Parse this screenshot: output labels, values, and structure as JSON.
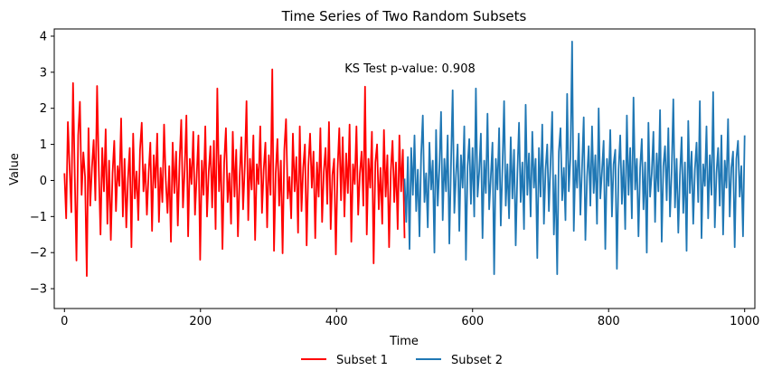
{
  "chart_data": {
    "type": "line",
    "title": "Time Series of Two Random Subsets",
    "xlabel": "Time",
    "ylabel": "Value",
    "xlim": [
      -15,
      1015
    ],
    "ylim": [
      -3.55,
      4.2
    ],
    "xticks": [
      0,
      200,
      400,
      600,
      800,
      1000
    ],
    "yticks": [
      -3,
      -2,
      -1,
      0,
      1,
      2,
      3,
      4
    ],
    "grid": false,
    "legend_placement": "bottom-center",
    "annotation": {
      "text": "KS Test p-value: 0.908",
      "x": 508,
      "y": 3.1
    },
    "series": [
      {
        "name": "Subset 1",
        "color": "#ff0000",
        "x_start": 0,
        "x_step": 1,
        "values": [
          0.2,
          -1.05,
          1.62,
          0.35,
          -0.88,
          2.7,
          0.15,
          -2.22,
          1.25,
          2.18,
          -0.4,
          0.78,
          0.1,
          -2.65,
          1.45,
          -0.7,
          0.35,
          1.12,
          -0.55,
          2.62,
          0.3,
          -1.5,
          0.9,
          -0.3,
          1.42,
          -1.2,
          0.55,
          -1.65,
          0.2,
          1.1,
          -0.85,
          0.4,
          -0.15,
          1.72,
          -1.0,
          0.6,
          -1.3,
          0.05,
          0.9,
          -1.85,
          1.3,
          -0.5,
          0.25,
          -1.1,
          0.85,
          1.6,
          -0.3,
          0.45,
          -0.95,
          0.2,
          1.05,
          -1.4,
          0.7,
          -0.2,
          1.3,
          -1.15,
          0.35,
          -0.6,
          1.55,
          0.0,
          -0.9,
          0.4,
          -1.7,
          1.05,
          -0.35,
          0.8,
          -1.25,
          0.5,
          1.68,
          -0.75,
          0.3,
          1.8,
          -1.55,
          0.6,
          -0.1,
          1.35,
          -0.95,
          0.15,
          1.25,
          -2.2,
          0.55,
          -0.4,
          1.5,
          -1.0,
          0.25,
          0.95,
          -0.75,
          1.1,
          -1.35,
          2.55,
          -0.3,
          0.7,
          -1.9,
          0.5,
          1.45,
          -0.6,
          0.2,
          -1.2,
          1.35,
          -0.45,
          0.85,
          -1.55,
          0.1,
          1.2,
          -0.8,
          0.4,
          2.2,
          -1.1,
          0.6,
          -0.25,
          1.25,
          -1.65,
          0.45,
          -0.1,
          1.5,
          -0.9,
          0.3,
          1.05,
          -1.3,
          0.7,
          -0.4,
          3.08,
          -1.95,
          0.2,
          1.15,
          -0.7,
          0.55,
          -2.02,
          0.85,
          1.7,
          -0.5,
          0.1,
          -1.05,
          1.3,
          -0.3,
          0.65,
          -1.45,
          1.5,
          -0.85,
          0.35,
          1.0,
          -1.8,
          0.4,
          1.3,
          -0.2,
          0.8,
          -1.6,
          0.5,
          -0.45,
          1.45,
          -1.15,
          0.25,
          0.9,
          -0.65,
          1.62,
          -1.35,
          0.15,
          0.6,
          -2.05,
          0.3,
          1.45,
          -0.55,
          1.2,
          -1.0,
          0.75,
          -0.35,
          1.55,
          -1.7,
          0.45,
          -0.1,
          1.5,
          -0.95,
          0.2,
          0.8,
          -0.7,
          2.6,
          -1.5,
          0.6,
          -0.2,
          1.35,
          -2.3,
          0.5,
          1.0,
          -0.8,
          0.35,
          -1.2,
          1.4,
          -0.45,
          0.7,
          -1.85,
          0.25,
          1.1,
          -0.6,
          0.5,
          -1.35,
          1.25,
          -0.3,
          0.85,
          -1.6
        ],
        "x_end_note": "approximate shape; series spans x=0..500"
      },
      {
        "name": "Subset 2",
        "color": "#1f77b4",
        "x_start": 500,
        "x_step": 1,
        "values": [
          0.05,
          -1.15,
          0.65,
          -1.9,
          0.9,
          -0.4,
          1.25,
          -0.85,
          0.3,
          -1.55,
          0.7,
          1.8,
          -0.6,
          0.2,
          -1.3,
          1.05,
          -0.25,
          0.55,
          -2.0,
          1.4,
          -0.7,
          0.35,
          1.9,
          -1.1,
          0.6,
          -0.3,
          1.25,
          -1.75,
          0.45,
          2.5,
          -0.9,
          0.15,
          1.0,
          -1.4,
          0.7,
          -0.2,
          1.5,
          -2.2,
          0.4,
          1.15,
          -0.65,
          0.9,
          -1.0,
          2.55,
          -0.45,
          0.25,
          1.3,
          -1.6,
          0.55,
          -0.35,
          1.85,
          -0.8,
          0.1,
          1.05,
          -2.6,
          0.6,
          -0.25,
          1.45,
          -1.25,
          0.35,
          2.2,
          -0.7,
          0.45,
          -1.05,
          1.2,
          -0.5,
          0.85,
          -1.8,
          0.2,
          1.6,
          -0.6,
          0.5,
          -1.35,
          2.1,
          -0.4,
          0.75,
          -1.0,
          1.35,
          -0.2,
          0.6,
          -2.15,
          0.9,
          -0.45,
          1.55,
          -1.2,
          0.3,
          1.0,
          -0.85,
          0.5,
          1.9,
          -1.5,
          0.15,
          -2.6,
          0.8,
          1.45,
          -0.55,
          0.35,
          -1.1,
          2.4,
          -0.3,
          0.65,
          3.85,
          -1.4,
          0.55,
          -0.2,
          1.3,
          -0.95,
          0.4,
          1.75,
          -1.65,
          0.1,
          0.95,
          -0.7,
          1.5,
          -0.35,
          0.7,
          -1.2,
          2.0,
          -0.5,
          0.25,
          1.1,
          -1.9,
          0.6,
          -0.15,
          1.4,
          -1.0,
          0.45,
          0.85,
          -2.45,
          0.3,
          1.25,
          -0.65,
          0.55,
          -1.35,
          1.8,
          -0.4,
          0.9,
          -1.05,
          2.3,
          -0.25,
          0.6,
          -1.55,
          0.35,
          1.15,
          -0.8,
          0.5,
          -2.0,
          1.6,
          -0.45,
          0.2,
          1.35,
          -1.15,
          0.75,
          -0.3,
          1.95,
          -1.7,
          0.4,
          0.95,
          -0.55,
          1.45,
          -1.0,
          0.25,
          2.25,
          -0.75,
          0.6,
          -1.45,
          0.15,
          1.2,
          -0.9,
          0.5,
          -1.95,
          1.65,
          -0.35,
          0.8,
          -1.2,
          0.3,
          1.05,
          -0.6,
          2.2,
          -1.6,
          0.45,
          -0.15,
          1.5,
          -1.05,
          0.7,
          -0.4,
          2.45,
          -1.3,
          0.2,
          0.9,
          -0.7,
          1.25,
          -1.5,
          0.55,
          -0.2,
          1.7,
          -1.0,
          0.35,
          0.8,
          -1.85,
          0.6,
          1.1,
          -0.45,
          0.4,
          -1.55,
          1.25
        ]
      }
    ],
    "legend": [
      "Subset 1",
      "Subset 2"
    ]
  }
}
